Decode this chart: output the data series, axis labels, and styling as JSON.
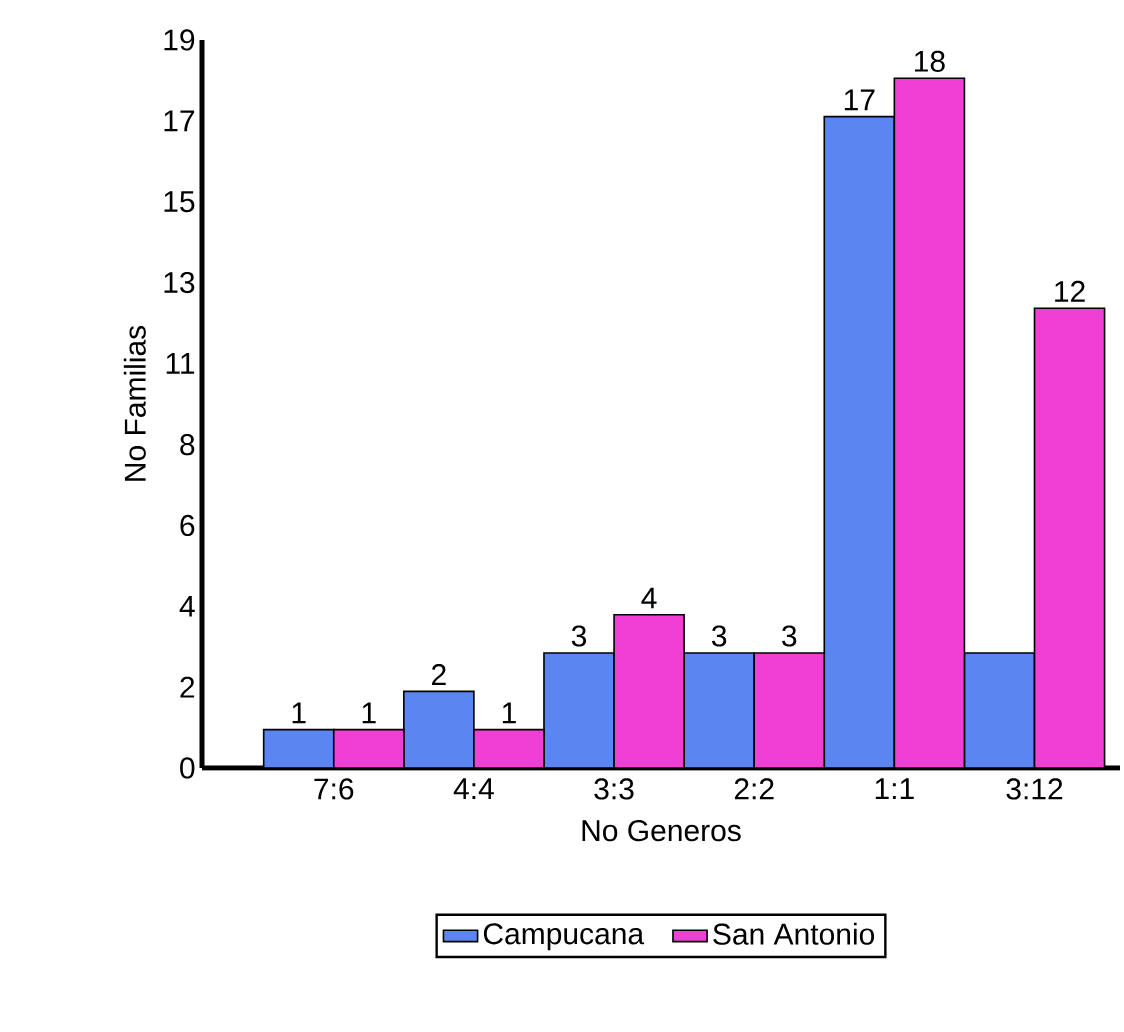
{
  "chart_data": {
    "type": "bar",
    "xlabel": "No Generos",
    "ylabel": "No Familias",
    "categories": [
      "7:6",
      "4:4",
      "3:3",
      "2:2",
      "1:1",
      "3:12"
    ],
    "series": [
      {
        "name": "Campucana",
        "color": "#5b86f2",
        "values": [
          1,
          2,
          3,
          3,
          17,
          3
        ],
        "value_labels": [
          "1",
          "2",
          "3",
          "3",
          "17",
          null
        ]
      },
      {
        "name": "San Antonio",
        "color": "#f03fd5",
        "values": [
          1,
          1,
          4,
          3,
          18,
          12
        ],
        "value_labels": [
          "1",
          "1",
          "4",
          "3",
          "18",
          "12"
        ]
      }
    ],
    "ylim": [
      0,
      19
    ],
    "yticks": [
      0,
      {
        "value": 2.11,
        "label": "2"
      },
      {
        "value": 4.22,
        "label": "4"
      },
      {
        "value": 6.33,
        "label": "6"
      },
      {
        "value": 8.44,
        "label": "8"
      },
      {
        "value": 10.56,
        "label": "11"
      },
      {
        "value": 12.67,
        "label": "13"
      },
      {
        "value": 14.78,
        "label": "15"
      },
      {
        "value": 16.89,
        "label": "17"
      },
      19
    ],
    "legend": "bottom"
  }
}
